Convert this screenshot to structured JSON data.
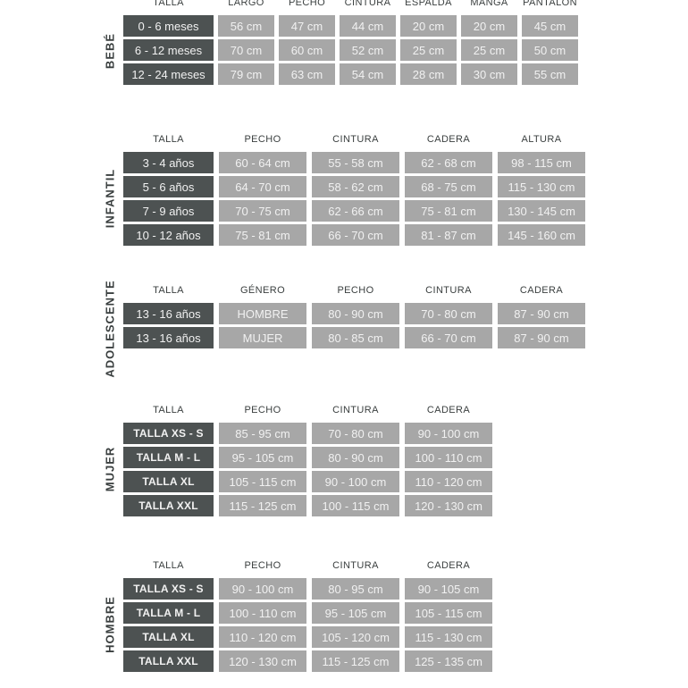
{
  "colors": {
    "page_background": "#ffffff",
    "size_cell_background": "#4d5252",
    "data_cell_background": "#a7a7a7",
    "cell_text": "#f1f1f1",
    "header_text": "#3a3f3f",
    "side_label_text": "#3a3f3f"
  },
  "tables": [
    {
      "id": "bebe",
      "side_label": "BEBÉ",
      "columns": [
        "TALLA",
        "LARGO",
        "PECHO",
        "CINTURA",
        "ESPALDA",
        "MANGA",
        "PANTALÓN"
      ],
      "rows": [
        {
          "size": "0 - 6 meses",
          "values": [
            "56 cm",
            "47 cm",
            "44 cm",
            "20 cm",
            "20 cm",
            "45 cm"
          ]
        },
        {
          "size": "6 - 12 meses",
          "values": [
            "70 cm",
            "60 cm",
            "52 cm",
            "25 cm",
            "25 cm",
            "50 cm"
          ]
        },
        {
          "size": "12 - 24 meses",
          "values": [
            "79 cm",
            "63 cm",
            "54 cm",
            "28 cm",
            "30 cm",
            "55 cm"
          ]
        }
      ]
    },
    {
      "id": "infantil",
      "side_label": "INFANTIL",
      "columns": [
        "TALLA",
        "PECHO",
        "CINTURA",
        "CADERA",
        "ALTURA"
      ],
      "rows": [
        {
          "size": "3 - 4 años",
          "values": [
            "60 - 64 cm",
            "55 - 58 cm",
            "62 - 68 cm",
            "98 - 115 cm"
          ]
        },
        {
          "size": "5 - 6 años",
          "values": [
            "64 - 70 cm",
            "58 - 62 cm",
            "68 - 75 cm",
            "115 - 130 cm"
          ]
        },
        {
          "size": "7 - 9 años",
          "values": [
            "70 - 75 cm",
            "62 - 66 cm",
            "75 - 81 cm",
            "130 - 145 cm"
          ]
        },
        {
          "size": "10 - 12 años",
          "values": [
            "75 - 81 cm",
            "66 - 70 cm",
            "81 - 87 cm",
            "145 - 160 cm"
          ]
        }
      ]
    },
    {
      "id": "adolescente",
      "side_label": "ADOLESCENTE",
      "columns": [
        "TALLA",
        "GÉNERO",
        "PECHO",
        "CINTURA",
        "CADERA"
      ],
      "rows": [
        {
          "size": "13 - 16 años",
          "values": [
            "HOMBRE",
            "80 - 90 cm",
            "70 - 80 cm",
            "87 - 90 cm"
          ]
        },
        {
          "size": "13 - 16 años",
          "values": [
            "MUJER",
            "80 - 85 cm",
            "66 - 70 cm",
            "87 - 90 cm"
          ]
        }
      ]
    },
    {
      "id": "mujer",
      "side_label": "MUJER",
      "columns": [
        "TALLA",
        "PECHO",
        "CINTURA",
        "CADERA"
      ],
      "rows": [
        {
          "size": "TALLA XS - S",
          "values": [
            "85 - 95 cm",
            "70 - 80 cm",
            "90 - 100 cm"
          ]
        },
        {
          "size": "TALLA M - L",
          "values": [
            "95 - 105 cm",
            "80 - 90 cm",
            "100 - 110 cm"
          ]
        },
        {
          "size": "TALLA XL",
          "values": [
            "105 - 115 cm",
            "90 - 100 cm",
            "110 - 120 cm"
          ]
        },
        {
          "size": "TALLA XXL",
          "values": [
            "115 - 125 cm",
            "100 - 115 cm",
            "120 - 130 cm"
          ]
        }
      ]
    },
    {
      "id": "hombre",
      "side_label": "HOMBRE",
      "columns": [
        "TALLA",
        "PECHO",
        "CINTURA",
        "CADERA"
      ],
      "rows": [
        {
          "size": "TALLA XS - S",
          "values": [
            "90 - 100 cm",
            "80 - 95 cm",
            "90 - 105 cm"
          ]
        },
        {
          "size": "TALLA M - L",
          "values": [
            "100 - 110 cm",
            "95 - 105 cm",
            "105 - 115 cm"
          ]
        },
        {
          "size": "TALLA XL",
          "values": [
            "110 - 120 cm",
            "105 - 120 cm",
            "115 - 130 cm"
          ]
        },
        {
          "size": "TALLA XXL",
          "values": [
            "120 - 130 cm",
            "115 - 125 cm",
            "125 - 135 cm"
          ]
        }
      ]
    }
  ]
}
